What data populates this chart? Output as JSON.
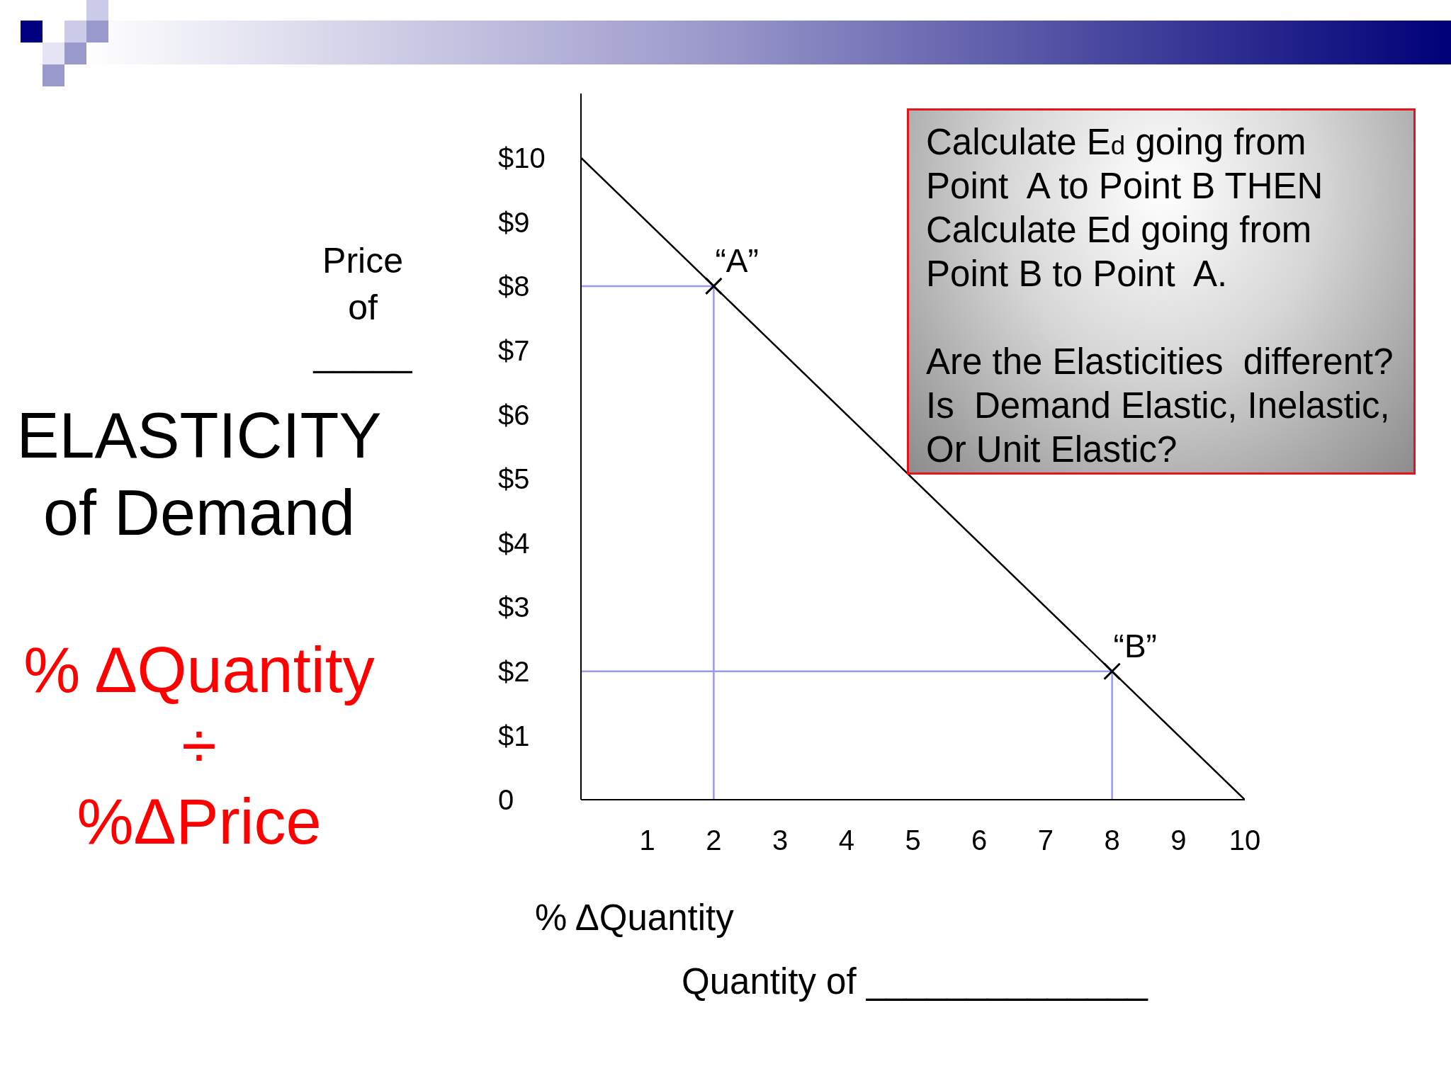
{
  "chart_data": {
    "type": "line",
    "title": "ELASTICITY\nof Demand",
    "subtitle": "% ΔQuantity\n÷\n%ΔPrice",
    "xlabel": "Quantity of ______________",
    "ylabel": "Price\nof\n_____",
    "annotations": [
      "Calculate E$_{d}$ going from\nPoint  A to Point B THEN\nCalculate Ed going from\nPoint B to Point  A.",
      "Are the Elasticities  different?\nIs  Demand Elastic, Inelastic,\nOr Unit Elastic?",
      "% ΔQuantity",
      {
        "text": "“A”",
        "x": 2,
        "y": 8
      },
      {
        "text": "“B”",
        "x": 8,
        "y": 2
      }
    ],
    "series": [
      {
        "color": "#000000",
        "x": [
          0,
          10
        ],
        "values": [
          10,
          0
        ]
      },
      {
        "color": "#9999ee",
        "x": [
          0,
          2,
          2
        ],
        "values": [
          8,
          8,
          0
        ]
      },
      {
        "color": "#9999ee",
        "x": [
          0,
          8,
          8
        ],
        "values": [
          2,
          2,
          0
        ]
      },
      {
        "type": "scatter",
        "color": "#000000",
        "marker": "cross",
        "x": [
          2,
          8
        ],
        "values": [
          8,
          2
        ]
      }
    ],
    "xlim": [
      0,
      10
    ],
    "ylim": [
      0,
      11
    ],
    "xticks": [
      1,
      2,
      3,
      4,
      5,
      6,
      7,
      8,
      9,
      10
    ],
    "yticks": [
      {
        "value": 0,
        "label": "0"
      },
      {
        "value": 1,
        "label": "$1"
      },
      {
        "value": 2,
        "label": "$2"
      },
      {
        "value": 3,
        "label": "$3"
      },
      {
        "value": 4,
        "label": "$4"
      },
      {
        "value": 5,
        "label": "$5"
      },
      {
        "value": 6,
        "label": "$6"
      },
      {
        "value": 7,
        "label": "$7"
      },
      {
        "value": 8,
        "label": "$8"
      },
      {
        "value": 9,
        "label": "$9"
      },
      {
        "value": 10,
        "label": "$10"
      }
    ]
  }
}
